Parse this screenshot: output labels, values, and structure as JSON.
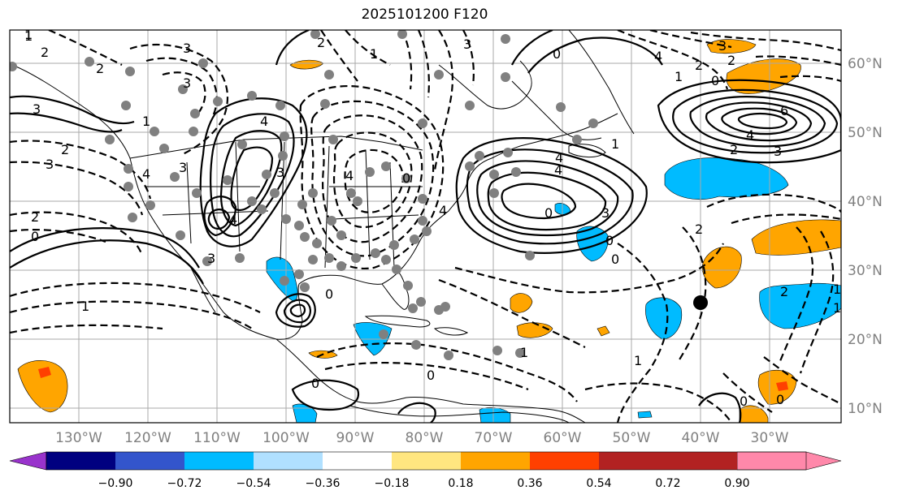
{
  "title": "2025101200 F120",
  "lon_labels": [
    "130°W",
    "120°W",
    "110°W",
    "100°W",
    "90°W",
    "80°W",
    "70°W",
    "60°W",
    "50°W",
    "40°W",
    "30°W"
  ],
  "lat_labels": [
    "60°N",
    "50°N",
    "40°N",
    "30°N",
    "20°N",
    "10°N"
  ],
  "colorbar": {
    "colors": [
      "#9933cc",
      "#000080",
      "#3355cc",
      "#00bbff",
      "#b0e0ff",
      "#ffffff",
      "#ffe680",
      "#ffa500",
      "#ff4000",
      "#b22222",
      "#ff88aa"
    ],
    "ticks": [
      "−0.90",
      "−0.72",
      "−0.54",
      "−0.36",
      "−0.18",
      "0.18",
      "0.36",
      "0.54",
      "0.72",
      "0.90"
    ]
  },
  "contour_labels": [
    "1",
    "2",
    "3",
    "0",
    "2",
    "3",
    "1",
    "2",
    "3",
    "4",
    "4",
    "3",
    "3",
    "4",
    "4",
    "4",
    "2",
    "3",
    "1",
    "2",
    "1",
    "0",
    "0",
    "1",
    "0",
    "2",
    "4",
    "3",
    "3",
    "1",
    "2",
    "3",
    "4",
    "6",
    "1",
    "2",
    "0",
    "1",
    "2",
    "3",
    "4",
    "4",
    "3",
    "0",
    "0",
    "0",
    "1",
    "2",
    "0",
    "0",
    "0",
    "1",
    "0",
    "1"
  ],
  "marker": {
    "type": "black-dot",
    "lon": "40°W",
    "lat": "26°N"
  },
  "shading_colors": {
    "positive_mid": "#ffa500",
    "positive_high": "#ff4000",
    "negative": "#00bbff"
  }
}
